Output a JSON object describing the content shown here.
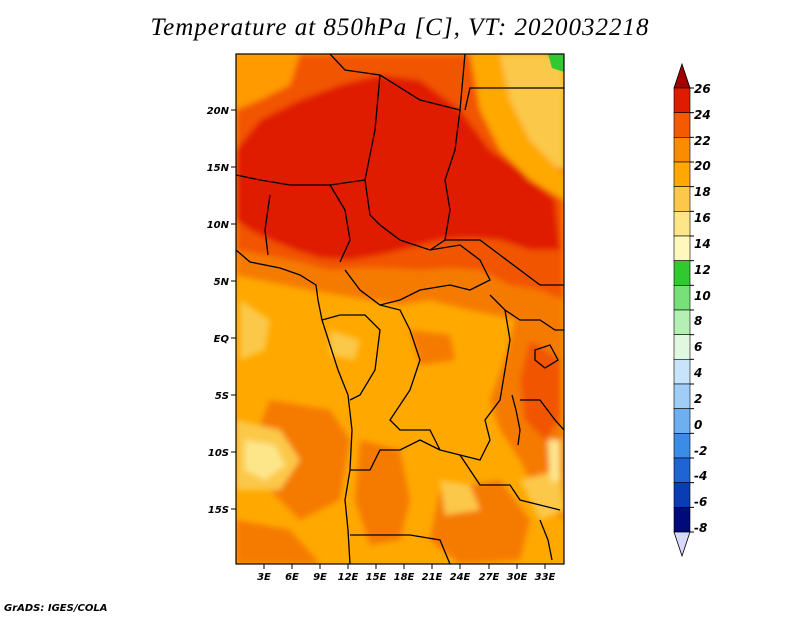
{
  "title": "Temperature at 850hPa [C], VT: 2020032218",
  "credit": "GrADS: IGES/COLA",
  "map": {
    "region": "Central Africa",
    "lat_labels": [
      "20N",
      "15N",
      "10N",
      "5N",
      "EQ",
      "5S",
      "10S",
      "15S"
    ],
    "lon_labels": [
      "3E",
      "6E",
      "9E",
      "12E",
      "15E",
      "18E",
      "21E",
      "24E",
      "27E",
      "30E",
      "33E"
    ]
  },
  "colorbar": {
    "labels": [
      "26",
      "24",
      "22",
      "20",
      "18",
      "16",
      "14",
      "12",
      "10",
      "8",
      "6",
      "4",
      "2",
      "0",
      "-2",
      "-4",
      "-6",
      "-8"
    ],
    "colors": [
      "#a00000",
      "#e01c00",
      "#f55a00",
      "#fa8c00",
      "#ffa800",
      "#fcc84a",
      "#fde68a",
      "#fff7bc",
      "#32c832",
      "#78e078",
      "#b4f0b4",
      "#e0f8e0",
      "#c8e4fa",
      "#a0cdf5",
      "#6eaff0",
      "#3c8ce6",
      "#1e64d2",
      "#0a3cb4",
      "#000a78",
      "#d8d8f8"
    ]
  }
}
